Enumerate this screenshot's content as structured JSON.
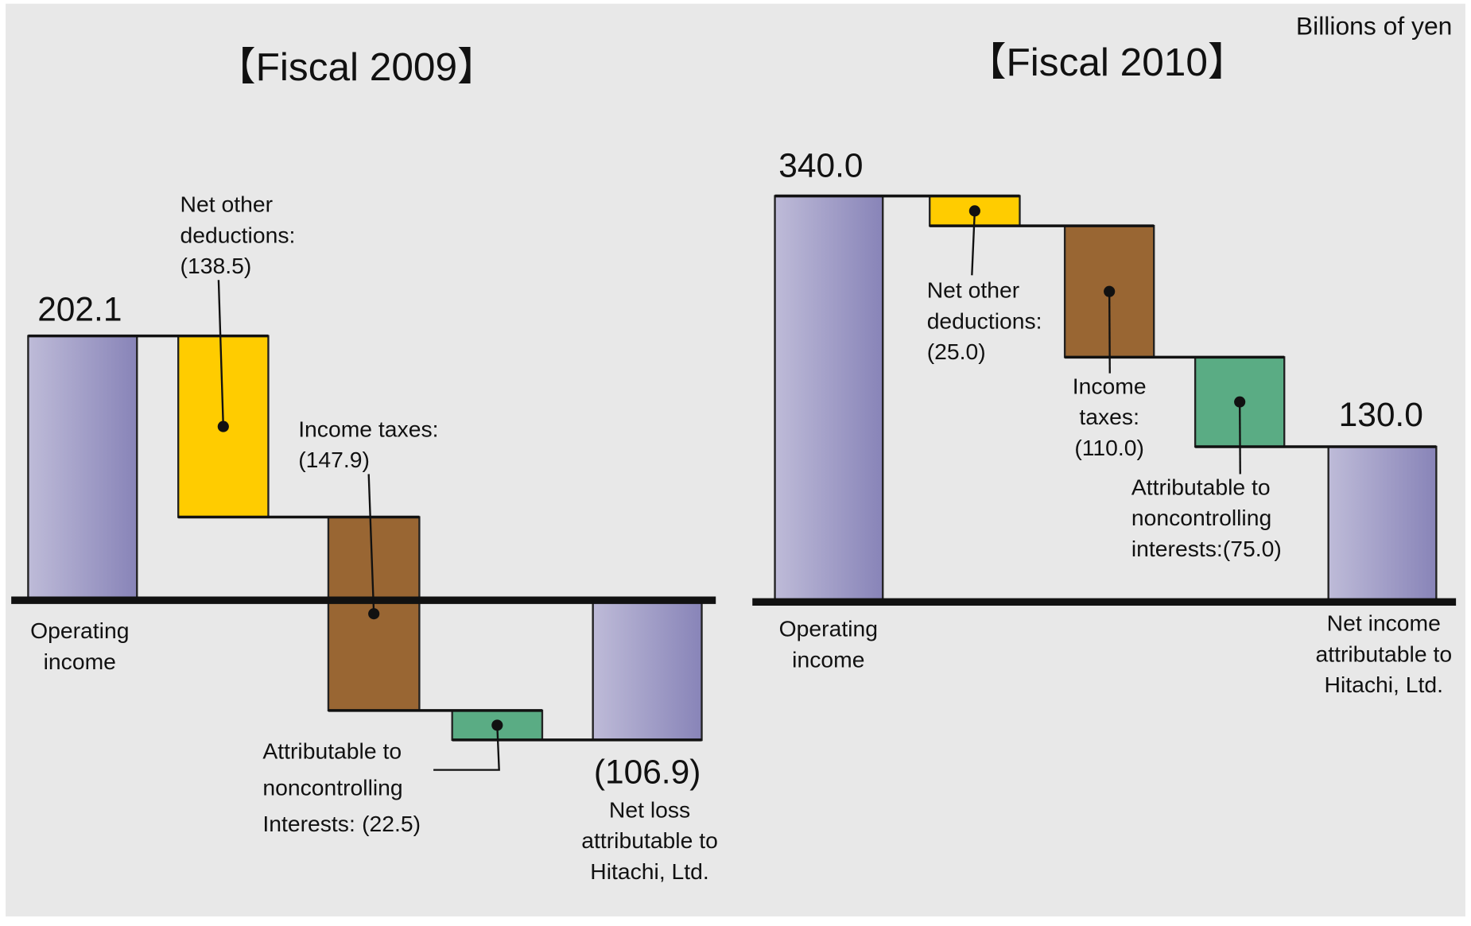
{
  "unit": "Billions of yen",
  "chart_data": [
    {
      "type": "waterfall",
      "title": "【Fiscal 2009】",
      "categories": [
        "Operating income",
        "Net other deductions:",
        "Income taxes:",
        "Attributable to noncontrolling Interests:",
        "Net loss attributable to Hitachi, Ltd."
      ],
      "values": [
        202.1,
        -138.5,
        -147.9,
        -22.5,
        -106.9
      ],
      "value_labels": [
        "202.1",
        "(138.5)",
        "(147.9)",
        "(22.5)",
        "(106.9)"
      ],
      "colors": [
        "#8884b8",
        "#ffcc00",
        "#996633",
        "#5aac84",
        "#8884b8"
      ]
    },
    {
      "type": "waterfall",
      "title": "【Fiscal 2010】",
      "categories": [
        "Operating income",
        "Net other deductions:",
        "Income taxes:",
        "Attributable to noncontrolling interests:",
        "Net income attributable to Hitachi, Ltd."
      ],
      "values": [
        340.0,
        -25.0,
        -110.0,
        -75.0,
        130.0
      ],
      "value_labels": [
        "340.0",
        "(25.0)",
        "(110.0)",
        "(75.0)",
        "130.0"
      ],
      "colors": [
        "#8884b8",
        "#ffcc00",
        "#996633",
        "#5aac84",
        "#8884b8"
      ]
    }
  ]
}
